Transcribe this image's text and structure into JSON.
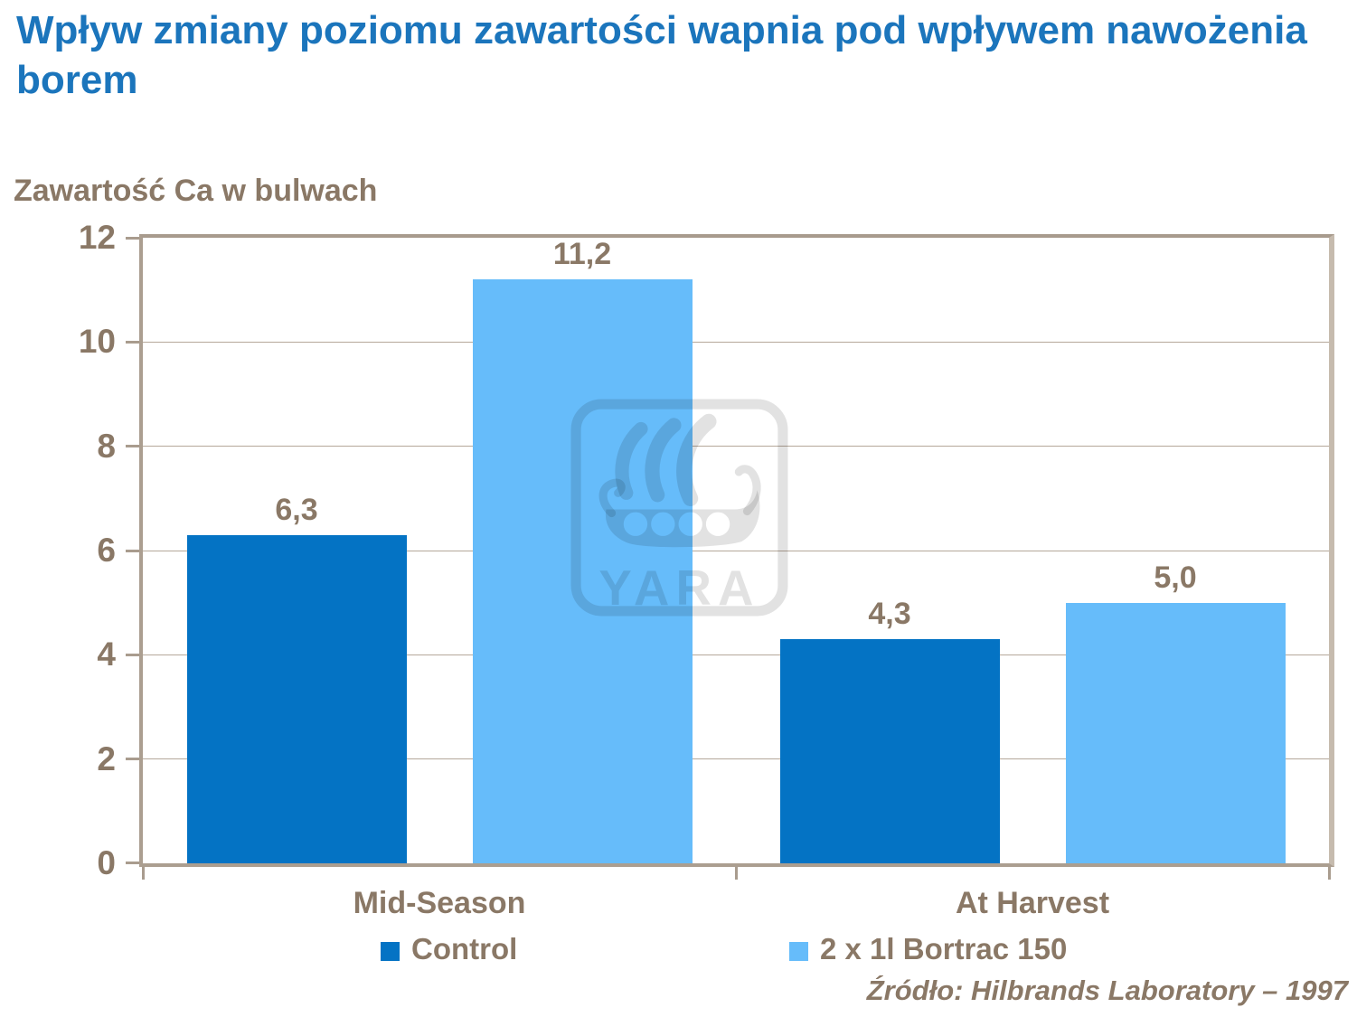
{
  "header": {
    "title": "Wpływ zmiany poziomu zawartości wapnia pod wpływem nawożenia borem",
    "subtitle": "Zawartość Ca w bulwach"
  },
  "footer": {
    "source": "Źródło: Hilbrands Laboratory – 1997"
  },
  "watermark": {
    "brand": "YARA"
  },
  "colors": {
    "title_blue": "#1B75BC",
    "text_brown": "#8A7866",
    "axis_tan": "#AB9E90",
    "grid_tan": "#B5A89A",
    "control_blue": "#0473C4",
    "bortrac_blue": "#66BCFA"
  },
  "chart_data": {
    "type": "bar",
    "title": "Zawartość Ca w bulwach",
    "categories": [
      "Mid-Season",
      "At Harvest"
    ],
    "series": [
      {
        "name": "Control",
        "color": "#0473C4",
        "values": [
          6.3,
          4.3
        ],
        "labels": [
          "6,3",
          "4,3"
        ]
      },
      {
        "name": "2 x 1l Bortrac 150",
        "color": "#66BCFA",
        "values": [
          11.2,
          5.0
        ],
        "labels": [
          "11,2",
          "5,0"
        ]
      }
    ],
    "xlabel": "",
    "ylabel": "Zawartość Ca w bulwach",
    "ylim": [
      0,
      12
    ],
    "yticks": [
      0,
      2,
      4,
      6,
      8,
      10,
      12
    ],
    "grid": true,
    "legend_position": "bottom"
  }
}
